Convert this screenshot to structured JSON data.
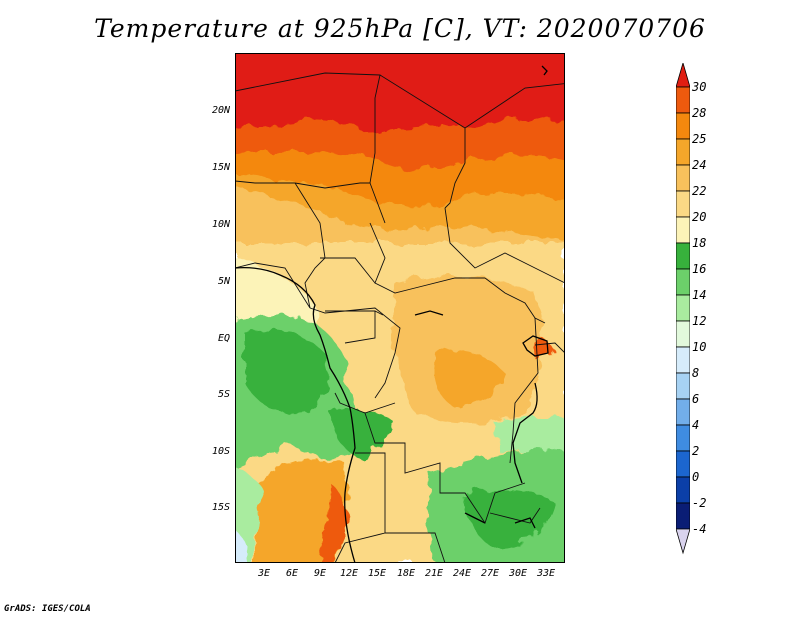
{
  "title": "Temperature at 925hPa [C], VT: 2020070706",
  "credit": "GrADS: IGES/COLA",
  "map": {
    "region": "Central Africa",
    "lat_labels": [
      "20N",
      "15N",
      "10N",
      "5N",
      "EQ",
      "5S",
      "10S",
      "15S"
    ],
    "lon_labels": [
      "3E",
      "6E",
      "9E",
      "12E",
      "15E",
      "18E",
      "21E",
      "24E",
      "27E",
      "30E",
      "33E"
    ]
  },
  "colorbar": {
    "levels": [
      "30",
      "28",
      "25",
      "24",
      "22",
      "20",
      "18",
      "16",
      "14",
      "12",
      "10",
      "8",
      "6",
      "4",
      "2",
      "0",
      "-2",
      "-4"
    ],
    "colors": [
      "#e01e12",
      "#ee5a0e",
      "#f4880e",
      "#f5a62a",
      "#f8c15c",
      "#fbd985",
      "#fcf3b8",
      "#37b13c",
      "#6cd06a",
      "#a9ec9f",
      "#e2f9dc",
      "#d6ecfb",
      "#a7d2f3",
      "#72aeea",
      "#3f8ce1",
      "#1c66cf",
      "#0b3fa8",
      "#0a1d75",
      "#d9d3ee"
    ]
  }
}
